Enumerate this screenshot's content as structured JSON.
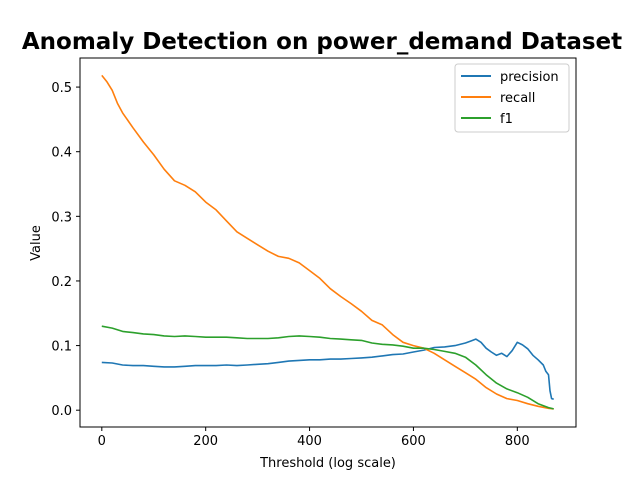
{
  "chart_data": {
    "type": "line",
    "title": "Anomaly Detection on power_demand Dataset",
    "xlabel": "Threshold (log scale)",
    "ylabel": "Value",
    "xlim": [
      -42,
      913
    ],
    "ylim": [
      -0.026,
      0.545
    ],
    "x_ticks": [
      0,
      200,
      400,
      600,
      800
    ],
    "y_ticks": [
      0.0,
      0.1,
      0.2,
      0.3,
      0.4,
      0.5
    ],
    "x_tick_labels": [
      "0",
      "200",
      "400",
      "600",
      "800"
    ],
    "y_tick_labels": [
      "0.0",
      "0.1",
      "0.2",
      "0.3",
      "0.4",
      "0.5"
    ],
    "grid": false,
    "legend_position": "top-right",
    "series": [
      {
        "name": "precision",
        "color": "#1f77b4",
        "x": [
          0,
          20,
          40,
          60,
          80,
          100,
          120,
          140,
          160,
          180,
          200,
          220,
          240,
          260,
          280,
          300,
          320,
          340,
          360,
          380,
          400,
          420,
          440,
          460,
          480,
          500,
          520,
          540,
          560,
          580,
          600,
          620,
          640,
          660,
          680,
          700,
          710,
          720,
          730,
          740,
          750,
          760,
          770,
          780,
          790,
          800,
          810,
          820,
          830,
          840,
          850,
          855,
          860,
          863,
          866,
          870
        ],
        "y": [
          0.074,
          0.073,
          0.07,
          0.069,
          0.069,
          0.068,
          0.067,
          0.067,
          0.068,
          0.069,
          0.069,
          0.069,
          0.07,
          0.069,
          0.07,
          0.071,
          0.072,
          0.074,
          0.076,
          0.077,
          0.078,
          0.078,
          0.079,
          0.079,
          0.08,
          0.081,
          0.082,
          0.084,
          0.086,
          0.087,
          0.09,
          0.093,
          0.097,
          0.098,
          0.1,
          0.104,
          0.107,
          0.11,
          0.105,
          0.096,
          0.09,
          0.085,
          0.088,
          0.083,
          0.092,
          0.105,
          0.101,
          0.095,
          0.085,
          0.078,
          0.07,
          0.06,
          0.055,
          0.03,
          0.018,
          0.017
        ]
      },
      {
        "name": "recall",
        "color": "#ff7f0e",
        "x": [
          0,
          10,
          20,
          30,
          40,
          60,
          80,
          100,
          120,
          140,
          160,
          180,
          200,
          220,
          240,
          260,
          280,
          300,
          320,
          340,
          360,
          380,
          400,
          420,
          440,
          460,
          480,
          500,
          520,
          540,
          560,
          580,
          600,
          620,
          640,
          660,
          680,
          700,
          720,
          740,
          760,
          780,
          800,
          820,
          840,
          860,
          870
        ],
        "y": [
          0.518,
          0.508,
          0.495,
          0.475,
          0.46,
          0.437,
          0.415,
          0.395,
          0.373,
          0.355,
          0.348,
          0.338,
          0.322,
          0.31,
          0.293,
          0.276,
          0.266,
          0.256,
          0.246,
          0.238,
          0.235,
          0.228,
          0.216,
          0.204,
          0.188,
          0.176,
          0.165,
          0.153,
          0.139,
          0.132,
          0.117,
          0.105,
          0.1,
          0.096,
          0.088,
          0.078,
          0.068,
          0.058,
          0.048,
          0.035,
          0.025,
          0.018,
          0.015,
          0.01,
          0.006,
          0.003,
          0.002
        ]
      },
      {
        "name": "f1",
        "color": "#2ca02c",
        "x": [
          0,
          20,
          40,
          60,
          80,
          100,
          120,
          140,
          160,
          180,
          200,
          220,
          240,
          260,
          280,
          300,
          320,
          340,
          360,
          380,
          400,
          420,
          440,
          460,
          480,
          500,
          520,
          540,
          560,
          580,
          600,
          620,
          640,
          660,
          680,
          700,
          720,
          740,
          760,
          780,
          800,
          820,
          840,
          860,
          870
        ],
        "y": [
          0.13,
          0.127,
          0.122,
          0.12,
          0.118,
          0.117,
          0.115,
          0.114,
          0.115,
          0.114,
          0.113,
          0.113,
          0.113,
          0.112,
          0.111,
          0.111,
          0.111,
          0.112,
          0.114,
          0.115,
          0.114,
          0.113,
          0.111,
          0.11,
          0.109,
          0.108,
          0.104,
          0.102,
          0.101,
          0.099,
          0.096,
          0.096,
          0.094,
          0.091,
          0.088,
          0.082,
          0.07,
          0.055,
          0.042,
          0.033,
          0.027,
          0.02,
          0.01,
          0.004,
          0.002
        ]
      }
    ]
  }
}
